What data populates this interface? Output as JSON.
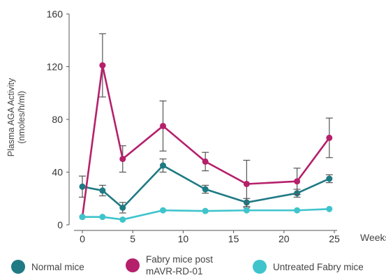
{
  "chart_data": {
    "type": "line",
    "ylabel": "Plasma AGA Activity\n(nmoles/h/ml)",
    "xunit": "Weeks",
    "xlim": [
      0,
      25
    ],
    "ylim": [
      0,
      160
    ],
    "xticks": [
      0,
      5,
      10,
      15,
      20,
      25
    ],
    "yticks": [
      0,
      40,
      80,
      120,
      160
    ],
    "series": [
      {
        "name": "Normal mice",
        "color": "#1f7a83",
        "x": [
          0,
          2,
          4,
          8,
          12.2,
          16.3,
          21.3,
          24.5
        ],
        "y": [
          29,
          26,
          13,
          45,
          27,
          17,
          24,
          35
        ],
        "err": [
          8,
          4,
          4,
          5,
          3,
          3,
          3,
          3
        ]
      },
      {
        "name": "Fabry mice post\nmAVR-RD-01",
        "color": "#b5206b",
        "x": [
          0,
          2,
          4,
          8,
          12.2,
          16.3,
          21.3,
          24.5
        ],
        "y": [
          6,
          121,
          50,
          75,
          48,
          31,
          33,
          66
        ],
        "err": [
          0,
          24,
          10,
          19,
          7,
          18,
          10,
          15
        ]
      },
      {
        "name": "Untreated Fabry mice",
        "color": "#3fc4cc",
        "x": [
          0,
          2,
          4,
          8,
          12.2,
          16.3,
          21.3,
          24.5
        ],
        "y": [
          6,
          6,
          4,
          11,
          10.5,
          11,
          11,
          12
        ],
        "err": [
          0,
          0,
          0,
          0,
          0,
          0,
          0,
          0
        ]
      }
    ]
  }
}
